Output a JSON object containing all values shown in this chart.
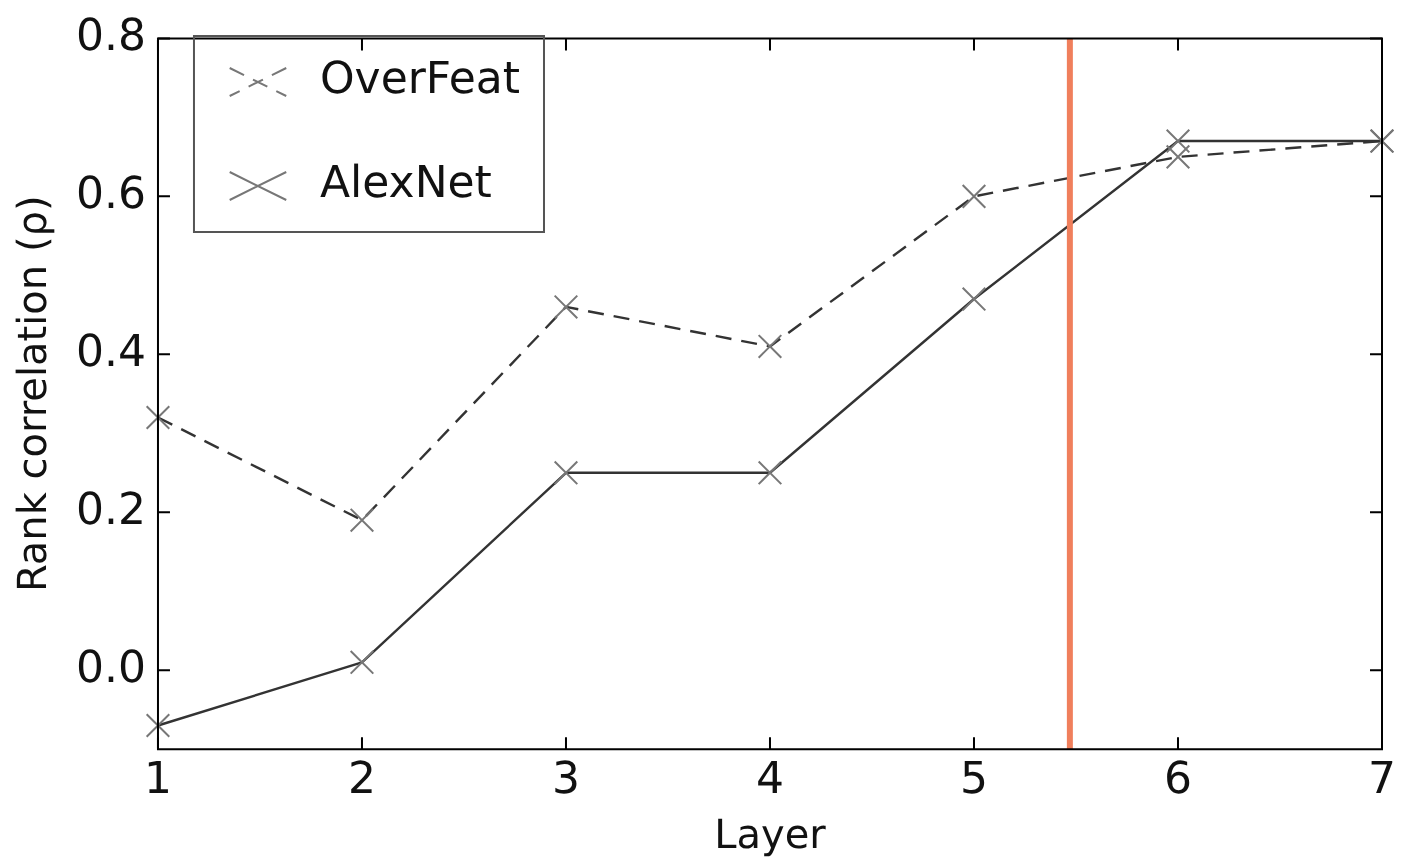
{
  "chart_data": {
    "type": "line",
    "xlabel": "Layer",
    "ylabel": "Rank correlation (ρ)",
    "x": [
      1,
      2,
      3,
      4,
      5,
      6,
      7
    ],
    "series": [
      {
        "name": "OverFeat",
        "color": "#333333",
        "line_style": "dashed",
        "values": [
          0.32,
          0.19,
          0.46,
          0.41,
          0.6,
          0.65,
          0.67
        ]
      },
      {
        "name": "AlexNet",
        "color": "#333333",
        "line_style": "solid",
        "values": [
          -0.07,
          0.01,
          0.25,
          0.25,
          0.47,
          0.67,
          0.67
        ]
      }
    ],
    "xlim": [
      1,
      7
    ],
    "xticks": [
      1,
      2,
      3,
      4,
      5,
      6,
      7
    ],
    "ylim": [
      -0.1,
      0.8
    ],
    "yticks": [
      {
        "value": 0.0,
        "label": "0.0"
      },
      {
        "value": 0.2,
        "label": "0.2"
      },
      {
        "value": 0.4,
        "label": "0.4"
      },
      {
        "value": 0.6,
        "label": "0.6"
      },
      {
        "value": 0.8,
        "label": "0.8"
      }
    ],
    "ref_lines": [
      {
        "axis": "x",
        "value": 5.47,
        "color": "#f07f5c"
      }
    ],
    "marker": "cross",
    "grid": false,
    "legend": "top left"
  }
}
